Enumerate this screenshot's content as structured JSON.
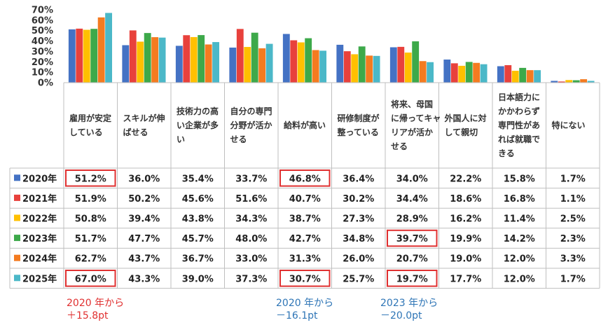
{
  "chart_data": {
    "type": "bar",
    "ylim": [
      0,
      70
    ],
    "yticks": [
      "0%",
      "10%",
      "20%",
      "30%",
      "40%",
      "50%",
      "60%",
      "70%"
    ],
    "grid": false,
    "legend": "table-left",
    "categories": [
      [
        "雇用が安定",
        "している"
      ],
      [
        "スキルが伸",
        "ばせる"
      ],
      [
        "技術力の高",
        "い企業が多",
        "い"
      ],
      [
        "自分の専門",
        "分野が活か",
        "せる"
      ],
      [
        "給料が高い"
      ],
      [
        "研修制度が",
        "整っている"
      ],
      [
        "将来、母国",
        "に帰ってキャ",
        "リアが活か",
        "せる"
      ],
      [
        "外国人に対",
        "して親切"
      ],
      [
        "日本語力に",
        "かかわらず",
        "専門性があ",
        "れば就職で",
        "きる"
      ],
      [
        "特にない"
      ]
    ],
    "series": [
      {
        "name": "2020年",
        "color": "#4472C4",
        "values": [
          51.2,
          36.0,
          35.4,
          33.7,
          46.8,
          36.4,
          34.0,
          22.2,
          15.8,
          1.7
        ],
        "labels": [
          "51.2%",
          "36.0%",
          "35.4%",
          "33.7%",
          "46.8%",
          "36.4%",
          "34.0%",
          "22.2%",
          "15.8%",
          "1.7%"
        ]
      },
      {
        "name": "2021年",
        "color": "#E8413C",
        "values": [
          51.9,
          50.2,
          45.6,
          51.6,
          40.7,
          30.2,
          34.4,
          18.6,
          16.8,
          1.1
        ],
        "labels": [
          "51.9%",
          "50.2%",
          "45.6%",
          "51.6%",
          "40.7%",
          "30.2%",
          "34.4%",
          "18.6%",
          "16.8%",
          "1.1%"
        ]
      },
      {
        "name": "2022年",
        "color": "#FFC000",
        "values": [
          50.8,
          39.4,
          43.8,
          34.3,
          38.7,
          27.3,
          28.9,
          16.2,
          11.4,
          2.5
        ],
        "labels": [
          "50.8%",
          "39.4%",
          "43.8%",
          "34.3%",
          "38.7%",
          "27.3%",
          "28.9%",
          "16.2%",
          "11.4%",
          "2.5%"
        ]
      },
      {
        "name": "2023年",
        "color": "#3DA94A",
        "values": [
          51.7,
          47.7,
          45.7,
          48.0,
          42.7,
          34.8,
          39.7,
          19.9,
          14.2,
          2.3
        ],
        "labels": [
          "51.7%",
          "47.7%",
          "45.7%",
          "48.0%",
          "42.7%",
          "34.8%",
          "39.7%",
          "19.9%",
          "14.2%",
          "2.3%"
        ]
      },
      {
        "name": "2024年",
        "color": "#F47B20",
        "values": [
          62.7,
          43.7,
          36.7,
          33.0,
          31.3,
          26.0,
          20.7,
          19.0,
          12.0,
          3.3
        ],
        "labels": [
          "62.7%",
          "43.7%",
          "36.7%",
          "33.0%",
          "31.3%",
          "26.0%",
          "20.7%",
          "19.0%",
          "12.0%",
          "3.3%"
        ]
      },
      {
        "name": "2025年",
        "color": "#4BB8C8",
        "values": [
          67.0,
          43.3,
          39.0,
          37.3,
          30.7,
          25.7,
          19.7,
          17.7,
          12.0,
          1.7
        ],
        "labels": [
          "67.0%",
          "43.3%",
          "39.0%",
          "37.3%",
          "30.7%",
          "25.7%",
          "19.7%",
          "17.7%",
          "12.0%",
          "1.7%"
        ]
      }
    ],
    "highlights": [
      {
        "series": 0,
        "category": 0
      },
      {
        "series": 5,
        "category": 0
      },
      {
        "series": 0,
        "category": 4
      },
      {
        "series": 5,
        "category": 4
      },
      {
        "series": 3,
        "category": 6
      },
      {
        "series": 5,
        "category": 6
      }
    ],
    "highlight_color": "#E03030"
  },
  "annotations": [
    {
      "lines": [
        "2020 年から",
        "＋15.8pt"
      ],
      "color": "#E03030"
    },
    {
      "lines": [
        "2020 年から",
        "－16.1pt"
      ],
      "color": "#2E75B6"
    },
    {
      "lines": [
        "2023 年から",
        "－20.0pt"
      ],
      "color": "#2E75B6"
    }
  ]
}
